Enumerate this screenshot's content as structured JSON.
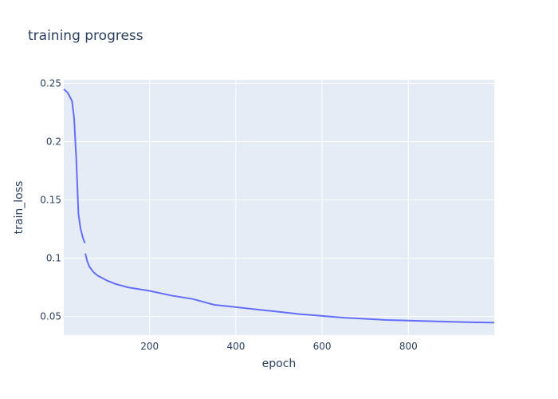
{
  "chart_data": {
    "type": "line",
    "title": "training progress",
    "xlabel": "epoch",
    "ylabel": "train_loss",
    "xlim": [
      1,
      999
    ],
    "ylim": [
      0.034,
      0.253
    ],
    "grid": true,
    "x_ticks": [
      200,
      400,
      600,
      800
    ],
    "x_tick_labels": [
      "200",
      "400",
      "600",
      "800"
    ],
    "y_ticks": [
      0.05,
      0.1,
      0.15,
      0.2,
      0.25
    ],
    "y_tick_labels": [
      "0.05",
      "0.1",
      "0.15",
      "0.2",
      "0.25"
    ],
    "colors": {
      "plot_bg": "#e5ecf6",
      "line": "#636efa",
      "text": "#2a3f5f",
      "grid": "#ffffff"
    },
    "series": [
      {
        "segments": [
          {
            "x": [
              1,
              10,
              20,
              25,
              30,
              35,
              40,
              45,
              50
            ],
            "y": [
              0.245,
              0.242,
              0.235,
              0.22,
              0.185,
              0.138,
              0.125,
              0.118,
              0.113
            ]
          },
          {
            "x": [
              51,
              55,
              60,
              70,
              80,
              90,
              100,
              120,
              150,
              200,
              250,
              300,
              350,
              400,
              450,
              500,
              550,
              600,
              650,
              700,
              750,
              800,
              850,
              900,
              950,
              999
            ],
            "y": [
              0.104,
              0.098,
              0.093,
              0.088,
              0.085,
              0.083,
              0.081,
              0.078,
              0.075,
              0.072,
              0.068,
              0.065,
              0.06,
              0.058,
              0.056,
              0.054,
              0.052,
              0.0505,
              0.049,
              0.048,
              0.047,
              0.0465,
              0.046,
              0.0455,
              0.045,
              0.0448
            ]
          }
        ]
      }
    ]
  }
}
